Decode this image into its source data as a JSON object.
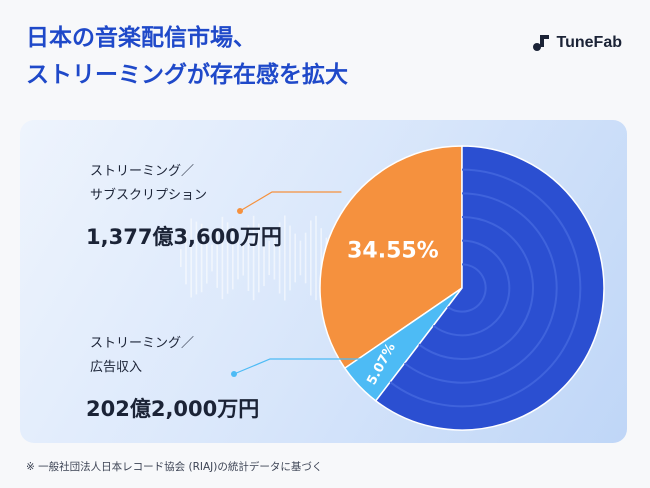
{
  "title": {
    "line1": "日本の音楽配信市場、",
    "line2": "ストリーミングが存在感を拡大"
  },
  "brand": {
    "name": "TuneFab",
    "icon": "tunefab-logo-icon"
  },
  "legend": {
    "subscription": {
      "line1": "ストリーミング／",
      "line2": "サブスクリプション",
      "amount": "1,377億3,600万円",
      "color": "#f5913e"
    },
    "ad": {
      "line1": "ストリーミング／",
      "line2": "広告収入",
      "amount": "202億2,000万円",
      "color": "#4dbbf5"
    }
  },
  "footnote": "※ 一般社団法人日本レコード協会 (RIAJ)の統計データに基づく",
  "chart_data": {
    "type": "pie",
    "start_angle_deg": 360,
    "direction": "counterclockwise",
    "slices": [
      {
        "name": "ストリーミング／サブスクリプション",
        "value": 34.55,
        "label": "34.55%",
        "color": "#f5913e"
      },
      {
        "name": "ストリーミング／広告収入",
        "value": 5.07,
        "label": "5.07%",
        "color": "#4dbbf5"
      },
      {
        "value": 60.38,
        "label": "",
        "color": "#2b4fd1"
      }
    ]
  }
}
